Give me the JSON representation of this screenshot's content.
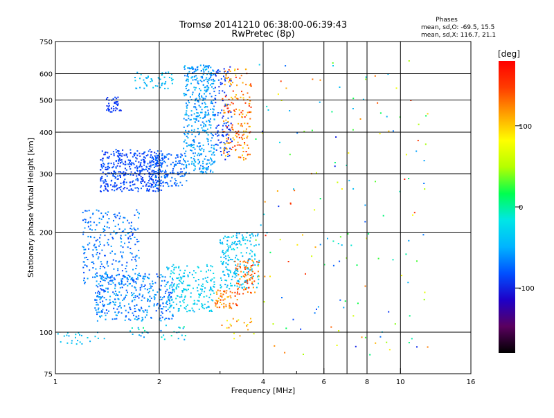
{
  "chart_data": {
    "type": "scatter",
    "title": "Tromsø 20141210 06:38:00-06:39:43",
    "subtitle": "RwPretec (8p)",
    "xlabel": "Frequency [MHz]",
    "ylabel": "Stationary phase Virtual Height [km]",
    "x_scale": "log",
    "y_scale": "log",
    "xlim": [
      1,
      16
    ],
    "ylim": [
      75,
      750
    ],
    "x_ticks": [
      "1",
      "2",
      "4",
      "6",
      "8",
      "10",
      "16"
    ],
    "x_tick_values": [
      1,
      2,
      4,
      6,
      8,
      10,
      16
    ],
    "x_grid": [
      2,
      4,
      6,
      7,
      8,
      10
    ],
    "y_ticks": [
      "75",
      "100",
      "200",
      "300",
      "400",
      "500",
      "600",
      "750"
    ],
    "y_tick_values": [
      75,
      100,
      200,
      300,
      400,
      500,
      600,
      750
    ],
    "y_grid": [
      100,
      200,
      300,
      400,
      500,
      600
    ],
    "grid": true,
    "colorbar": {
      "label": "[deg]",
      "range": [
        -180,
        180
      ],
      "tick_labels": [
        "100",
        "0",
        "-100"
      ],
      "tick_values": [
        100,
        0,
        -100
      ],
      "colors": [
        "#000000",
        "#5a005f",
        "#1e00c8",
        "#0050ff",
        "#00b4ff",
        "#00e6e6",
        "#00ff50",
        "#b4ff00",
        "#ffff00",
        "#ffa000",
        "#ff3c00",
        "#ff0000"
      ]
    },
    "stats": {
      "heading": "Phases",
      "line1": "mean, sd,O: -69.5, 15.5",
      "line2": "mean, sd,X: 116.7, 21.1"
    },
    "clusters": [
      {
        "fmin": 1.35,
        "fmax": 2.05,
        "hmin": 265,
        "hmax": 355,
        "n": 420,
        "phase": [
          -105,
          -80
        ]
      },
      {
        "fmin": 1.9,
        "fmax": 2.4,
        "hmin": 275,
        "hmax": 345,
        "n": 140,
        "phase": [
          -95,
          -65
        ]
      },
      {
        "fmin": 2.35,
        "fmax": 2.9,
        "hmin": 300,
        "hmax": 640,
        "n": 420,
        "phase": [
          -80,
          -40
        ]
      },
      {
        "fmin": 2.9,
        "fmax": 3.25,
        "hmin": 330,
        "hmax": 630,
        "n": 110,
        "phase": [
          -110,
          -80
        ]
      },
      {
        "fmin": 3.05,
        "fmax": 3.7,
        "hmin": 330,
        "hmax": 620,
        "n": 170,
        "phase": [
          110,
          170
        ]
      },
      {
        "fmin": 1.4,
        "fmax": 1.55,
        "hmin": 460,
        "hmax": 510,
        "n": 40,
        "phase": [
          -105,
          -90
        ]
      },
      {
        "fmin": 1.7,
        "fmax": 2.2,
        "hmin": 540,
        "hmax": 610,
        "n": 50,
        "phase": [
          -60,
          -30
        ]
      },
      {
        "fmin": 1.2,
        "fmax": 1.75,
        "hmin": 140,
        "hmax": 235,
        "n": 260,
        "phase": [
          -95,
          -55
        ]
      },
      {
        "fmin": 1.3,
        "fmax": 2.2,
        "hmin": 108,
        "hmax": 150,
        "n": 380,
        "phase": [
          -95,
          -45
        ]
      },
      {
        "fmin": 2.1,
        "fmax": 2.9,
        "hmin": 115,
        "hmax": 160,
        "n": 190,
        "phase": [
          -50,
          -20
        ]
      },
      {
        "fmin": 2.9,
        "fmax": 3.4,
        "hmin": 118,
        "hmax": 135,
        "n": 60,
        "phase": [
          120,
          165
        ]
      },
      {
        "fmin": 3.0,
        "fmax": 3.9,
        "hmin": 135,
        "hmax": 200,
        "n": 200,
        "phase": [
          -60,
          -20
        ]
      },
      {
        "fmin": 3.3,
        "fmax": 3.9,
        "hmin": 130,
        "hmax": 165,
        "n": 70,
        "phase": [
          120,
          170
        ]
      },
      {
        "fmin": 1.0,
        "fmax": 1.4,
        "hmin": 92,
        "hmax": 100,
        "n": 25,
        "phase": [
          -60,
          -30
        ]
      },
      {
        "fmin": 1.6,
        "fmax": 2.4,
        "hmin": 95,
        "hmax": 105,
        "n": 30,
        "phase": [
          -80,
          10
        ]
      },
      {
        "fmin": 3.0,
        "fmax": 3.8,
        "hmin": 95,
        "hmax": 110,
        "n": 20,
        "phase": [
          80,
          150
        ]
      },
      {
        "fmin": 3.8,
        "fmax": 12.0,
        "hmin": 85,
        "hmax": 660,
        "n": 160,
        "phase": [
          -110,
          170
        ]
      }
    ]
  }
}
